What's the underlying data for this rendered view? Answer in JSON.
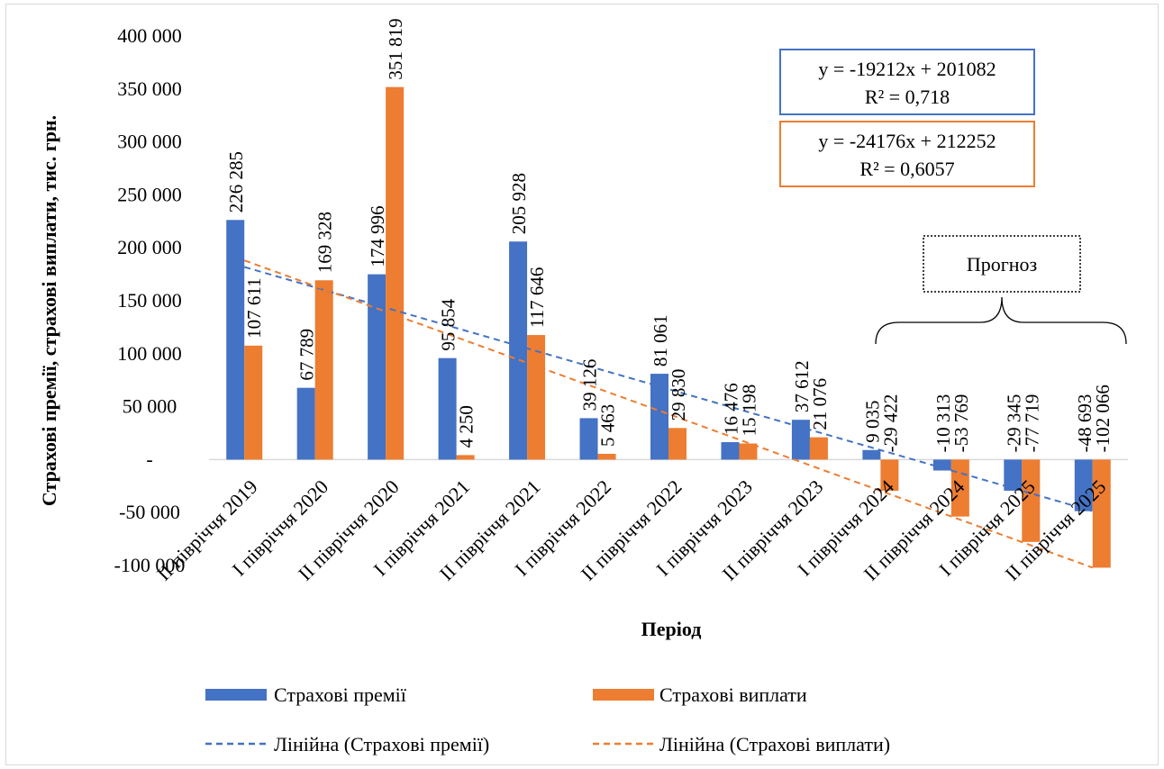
{
  "chart_data": {
    "type": "bar",
    "categories": [
      "II півріччя 2019",
      "I півріччя 2020",
      "II півріччя 2020",
      "I півріччя 2021",
      "II півріччя 2021",
      "I півріччя 2022",
      "II півріччя 2022",
      "I півріччя 2023",
      "II півріччя 2023",
      "I півріччя 2024",
      "II півріччя 2024",
      "I півріччя 2025",
      "II півріччя 2025"
    ],
    "series": [
      {
        "name": "Страхові премії",
        "color": "#4472C4",
        "values": [
          226285,
          67789,
          174996,
          95854,
          205928,
          39126,
          81061,
          16476,
          37612,
          9035,
          -10313,
          -29345,
          -48693
        ],
        "labels": [
          "226 285",
          "67 789",
          "174 996",
          "95 854",
          "205 928",
          "39 126",
          "81 061",
          "16 476",
          "37 612",
          "9 035",
          "-10 313",
          "-29 345",
          "-48 693"
        ]
      },
      {
        "name": "Страхові виплати",
        "color": "#ED7D31",
        "values": [
          107611,
          169328,
          351819,
          4250,
          117646,
          5463,
          29830,
          15198,
          21076,
          -29422,
          -53769,
          -77719,
          -102066
        ],
        "labels": [
          "107 611",
          "169 328",
          "351 819",
          "4 250",
          "117 646",
          "5 463",
          "29 830",
          "15 198",
          "21 076",
          "-29 422",
          "-53 769",
          "-77 719",
          "-102 066"
        ]
      }
    ],
    "trendlines": [
      {
        "name": "Лінійна (Страхові премії)",
        "color": "#4472C4",
        "slope": -19212,
        "intercept": 201082,
        "equation": "y = -19212x + 201082",
        "r2": "R² = 0,718"
      },
      {
        "name": "Лінійна (Страхові виплати)",
        "color": "#ED7D31",
        "slope": -24176,
        "intercept": 212252,
        "equation": "y = -24176x + 212252",
        "r2": "R² = 0,6057"
      }
    ],
    "ylim": [
      -100000,
      400000
    ],
    "yticks": [
      {
        "value": 400000,
        "label": "400 000"
      },
      {
        "value": 350000,
        "label": "350 000"
      },
      {
        "value": 300000,
        "label": "300 000"
      },
      {
        "value": 250000,
        "label": "250 000"
      },
      {
        "value": 200000,
        "label": "200 000"
      },
      {
        "value": 150000,
        "label": "150 000"
      },
      {
        "value": 100000,
        "label": "100 000"
      },
      {
        "value": 50000,
        "label": "50 000"
      },
      {
        "value": 0,
        "label": "-"
      },
      {
        "value": -50000,
        "label": "-50 000"
      },
      {
        "value": -100000,
        "label": "-100 000"
      }
    ],
    "xlabel": "Період",
    "ylabel": "Страхові премії, страхові виплати, тис. грн.",
    "forecast_label": "Прогноз",
    "forecast_range": [
      "I півріччя 2024",
      "II півріччя 2025"
    ],
    "legend_position": "bottom",
    "grid": false
  }
}
